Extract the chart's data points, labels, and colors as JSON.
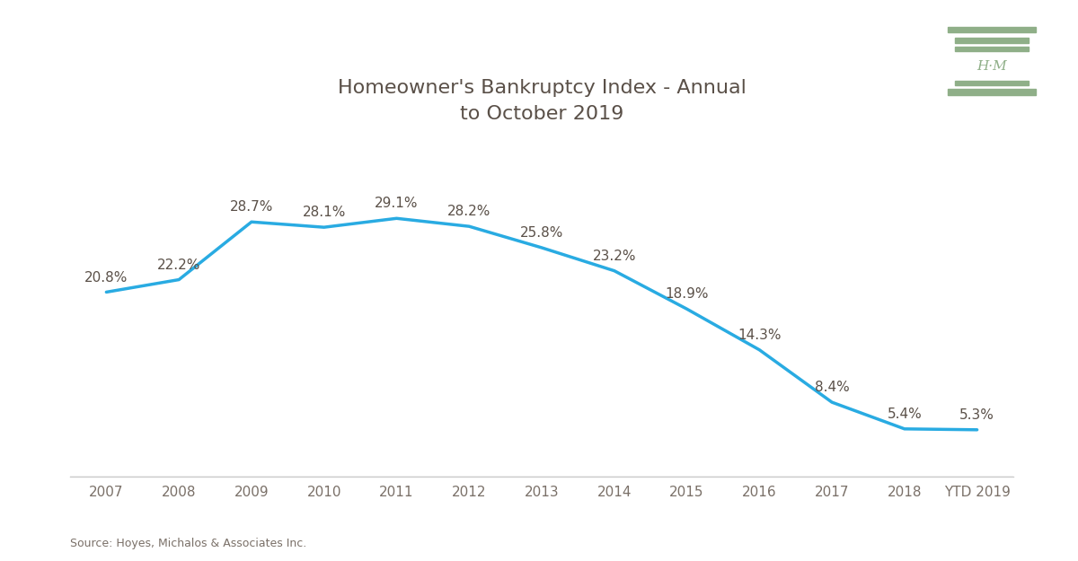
{
  "title": "Homeowner's Bankruptcy Index - Annual\nto October 2019",
  "title_color": "#5a5048",
  "title_fontsize": 16,
  "source_text": "Source: Hoyes, Michalos & Associates Inc.",
  "categories": [
    "2007",
    "2008",
    "2009",
    "2010",
    "2011",
    "2012",
    "2013",
    "2014",
    "2015",
    "2016",
    "2017",
    "2018",
    "YTD 2019"
  ],
  "values": [
    20.8,
    22.2,
    28.7,
    28.1,
    29.1,
    28.2,
    25.8,
    23.2,
    18.9,
    14.3,
    8.4,
    5.4,
    5.3
  ],
  "line_color": "#29ABE2",
  "line_width": 2.5,
  "label_color": "#5a5048",
  "label_fontsize": 11,
  "tick_color": "#7a7068",
  "tick_fontsize": 11,
  "background_color": "#ffffff",
  "logo_color": "#8faf88",
  "ylim_min": 0,
  "ylim_max": 36,
  "border_color": "#cccccc",
  "source_fontsize": 9
}
